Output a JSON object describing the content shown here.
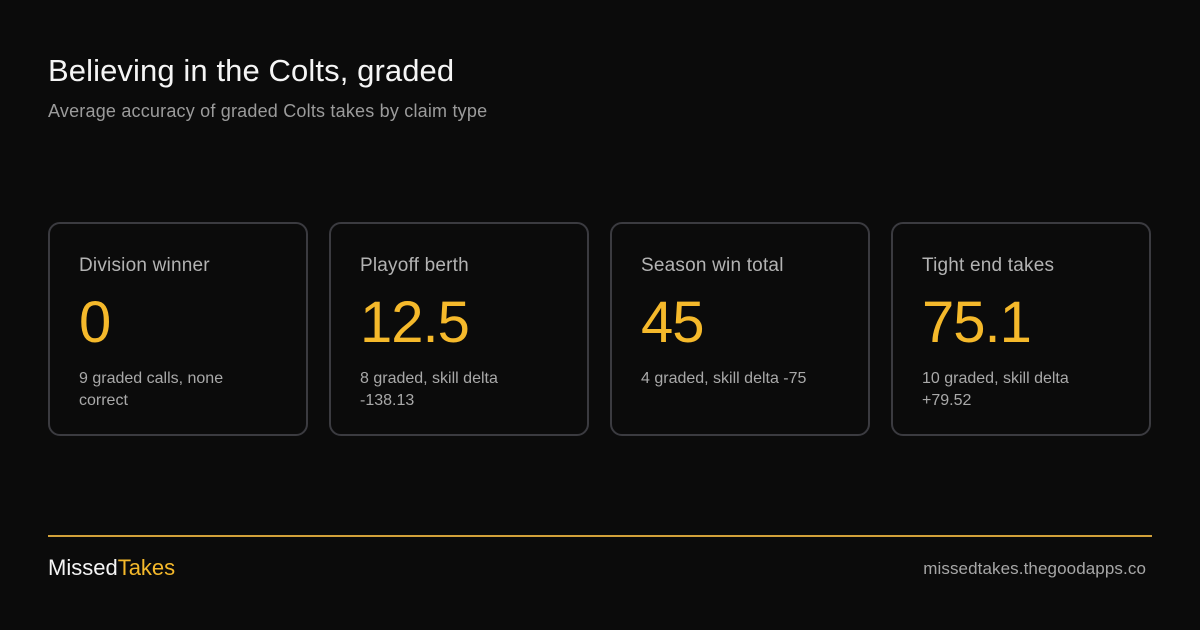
{
  "header": {
    "title": "Believing in the Colts, graded",
    "subtitle": "Average accuracy of graded Colts takes by claim type"
  },
  "cards": [
    {
      "label": "Division winner",
      "value": "0",
      "note": "9 graded calls, none correct"
    },
    {
      "label": "Playoff berth",
      "value": "12.5",
      "note": "8 graded, skill delta -138.13"
    },
    {
      "label": "Season win total",
      "value": "45",
      "note": "4 graded, skill delta -75"
    },
    {
      "label": "Tight end takes",
      "value": "75.1",
      "note": "10 graded, skill delta +79.52"
    }
  ],
  "footer": {
    "brand_part1": "Missed",
    "brand_part2": "Takes",
    "url": "missedtakes.thegoodapps.co"
  },
  "colors": {
    "background": "#0b0b0b",
    "accent": "#f5b92b",
    "card_border": "#3b3b40",
    "muted_text": "#a9a9a9"
  }
}
